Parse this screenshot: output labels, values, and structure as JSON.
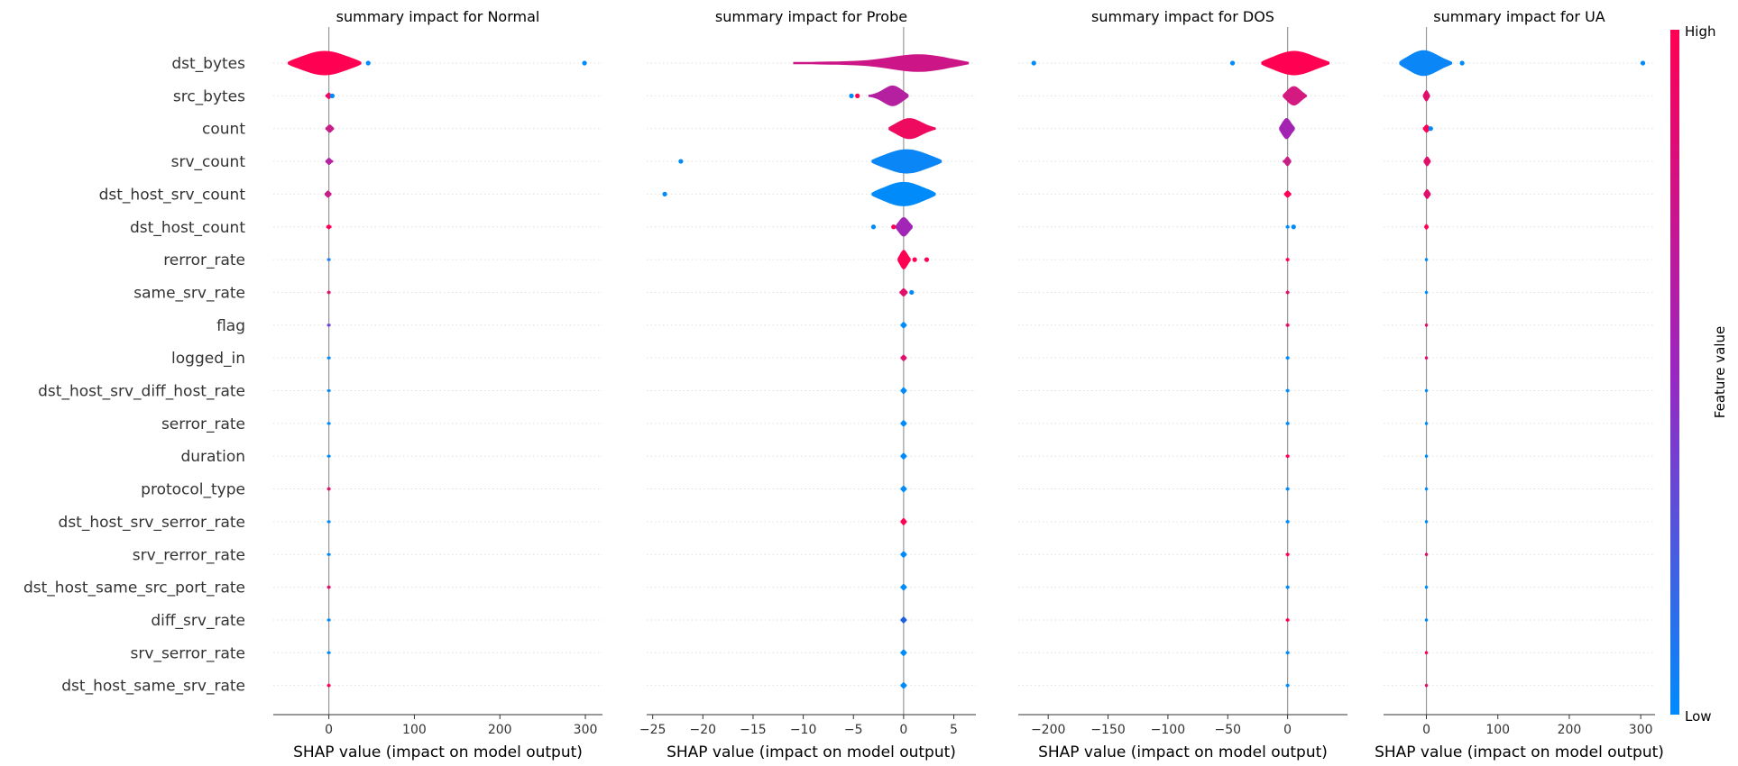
{
  "chart_data": {
    "type": "violin",
    "features": [
      "dst_bytes",
      "src_bytes",
      "count",
      "srv_count",
      "dst_host_srv_count",
      "dst_host_count",
      "rerror_rate",
      "same_srv_rate",
      "flag",
      "logged_in",
      "dst_host_srv_diff_host_rate",
      "serror_rate",
      "duration",
      "protocol_type",
      "dst_host_srv_serror_rate",
      "srv_rerror_rate",
      "dst_host_same_src_port_rate",
      "diff_srv_rate",
      "srv_serror_rate",
      "dst_host_same_srv_rate"
    ],
    "xlabel": "SHAP value (impact on model output)",
    "colorbar": {
      "label": "Feature value",
      "high": "High",
      "low": "Low",
      "high_color": "#ff0052",
      "mid_color": "#9a27c0",
      "low_color": "#008bfb"
    },
    "panels": [
      {
        "title": "summary impact for Normal",
        "xlim": [
          -65,
          320
        ],
        "xticks": [
          0,
          100,
          200,
          300
        ],
        "tick_labels": [
          "0",
          "100",
          "200",
          "300"
        ],
        "violins": [
          {
            "c": -5,
            "lo": -48,
            "hi": 38,
            "w": 0.75,
            "color": "#ff0052"
          },
          {
            "c": 0,
            "lo": -4,
            "hi": 4,
            "w": 0.2,
            "color": "#f20a5e"
          },
          {
            "c": 1,
            "lo": -4,
            "hi": 6,
            "w": 0.25,
            "color": "#c81e88"
          },
          {
            "c": 0,
            "lo": -4,
            "hi": 5,
            "w": 0.22,
            "color": "#b523a3"
          },
          {
            "c": -1,
            "lo": -5,
            "hi": 3,
            "w": 0.22,
            "color": "#c81e88"
          },
          {
            "c": 0,
            "lo": -3,
            "hi": 3,
            "w": 0.15,
            "color": "#ff0052"
          },
          {
            "c": 0,
            "lo": -2,
            "hi": 2,
            "w": 0.1,
            "color": "#1a82f5"
          },
          {
            "c": 0,
            "lo": -2,
            "hi": 2,
            "w": 0.12,
            "color": "#e0106a"
          },
          {
            "c": 0,
            "lo": -2,
            "hi": 2,
            "w": 0.1,
            "color": "#6a45d8"
          },
          {
            "c": 0,
            "lo": -2,
            "hi": 2,
            "w": 0.1,
            "color": "#008bfb"
          },
          {
            "c": 0,
            "lo": -2,
            "hi": 2,
            "w": 0.1,
            "color": "#008bfb"
          },
          {
            "c": 0,
            "lo": -2,
            "hi": 2,
            "w": 0.1,
            "color": "#008bfb"
          },
          {
            "c": 0,
            "lo": -2,
            "hi": 2,
            "w": 0.1,
            "color": "#008bfb"
          },
          {
            "c": 0,
            "lo": -2,
            "hi": 2,
            "w": 0.12,
            "color": "#e0106a"
          },
          {
            "c": 0,
            "lo": -2,
            "hi": 2,
            "w": 0.1,
            "color": "#008bfb"
          },
          {
            "c": 0,
            "lo": -2,
            "hi": 2,
            "w": 0.1,
            "color": "#008bfb"
          },
          {
            "c": 0,
            "lo": -2,
            "hi": 2,
            "w": 0.12,
            "color": "#e0106a"
          },
          {
            "c": 0,
            "lo": -2,
            "hi": 2,
            "w": 0.1,
            "color": "#008bfb"
          },
          {
            "c": 0,
            "lo": -2,
            "hi": 2,
            "w": 0.1,
            "color": "#008bfb"
          },
          {
            "c": 0,
            "lo": -2,
            "hi": 2,
            "w": 0.12,
            "color": "#ff0052"
          }
        ],
        "points": [
          {
            "f": 0,
            "x": 46,
            "color": "#008bfb"
          },
          {
            "f": 0,
            "x": 299,
            "color": "#008bfb"
          },
          {
            "f": 1,
            "x": 4,
            "color": "#008bfb"
          }
        ]
      },
      {
        "title": "summary impact for Probe",
        "xlim": [
          -25.6,
          7.2
        ],
        "xticks": [
          -25,
          -20,
          -15,
          -10,
          -5,
          0,
          5
        ],
        "tick_labels": [
          "−25",
          "−20",
          "−15",
          "−10",
          "−5",
          "0",
          "5"
        ],
        "violins": [
          {
            "c": 2,
            "lo": -11,
            "hi": 6.5,
            "w": 0.6,
            "color": "#cc1586"
          },
          {
            "c": -1,
            "lo": -3.5,
            "hi": 0.5,
            "w": 0.65,
            "color": "#b520a0"
          },
          {
            "c": 0.5,
            "lo": -1.5,
            "hi": 3.2,
            "w": 0.65,
            "color": "#ee0a5e"
          },
          {
            "c": 0.3,
            "lo": -3.2,
            "hi": 3.8,
            "w": 0.75,
            "color": "#0a86f7"
          },
          {
            "c": 0,
            "lo": -3.2,
            "hi": 3.2,
            "w": 0.75,
            "color": "#008bfb"
          },
          {
            "c": 0,
            "lo": -0.8,
            "hi": 0.9,
            "w": 0.6,
            "color": "#a226b5"
          },
          {
            "c": 0,
            "lo": -0.6,
            "hi": 0.7,
            "w": 0.6,
            "color": "#ff0052"
          },
          {
            "c": 0,
            "lo": -0.4,
            "hi": 0.4,
            "w": 0.25,
            "color": "#e0106a"
          },
          {
            "c": 0,
            "lo": -0.3,
            "hi": 0.3,
            "w": 0.2,
            "color": "#008bfb"
          },
          {
            "c": 0,
            "lo": -0.3,
            "hi": 0.3,
            "w": 0.2,
            "color": "#e0106a"
          },
          {
            "c": 0,
            "lo": -0.3,
            "hi": 0.3,
            "w": 0.2,
            "color": "#008bfb"
          },
          {
            "c": 0,
            "lo": -0.3,
            "hi": 0.3,
            "w": 0.2,
            "color": "#008bfb"
          },
          {
            "c": 0,
            "lo": -0.3,
            "hi": 0.3,
            "w": 0.2,
            "color": "#008bfb"
          },
          {
            "c": 0,
            "lo": -0.3,
            "hi": 0.3,
            "w": 0.2,
            "color": "#008bfb"
          },
          {
            "c": 0,
            "lo": -0.3,
            "hi": 0.3,
            "w": 0.22,
            "color": "#ff0052"
          },
          {
            "c": 0,
            "lo": -0.3,
            "hi": 0.3,
            "w": 0.2,
            "color": "#008bfb"
          },
          {
            "c": 0,
            "lo": -0.3,
            "hi": 0.3,
            "w": 0.2,
            "color": "#008bfb"
          },
          {
            "c": 0,
            "lo": -0.3,
            "hi": 0.3,
            "w": 0.2,
            "color": "#1a60e0"
          },
          {
            "c": 0,
            "lo": -0.3,
            "hi": 0.3,
            "w": 0.2,
            "color": "#008bfb"
          },
          {
            "c": 0,
            "lo": -0.3,
            "hi": 0.3,
            "w": 0.2,
            "color": "#008bfb"
          }
        ],
        "points": [
          {
            "f": 1,
            "x": -5.2,
            "color": "#008bfb"
          },
          {
            "f": 1,
            "x": -4.6,
            "color": "#ff0052"
          },
          {
            "f": 3,
            "x": -22.2,
            "color": "#008bfb"
          },
          {
            "f": 4,
            "x": -23.8,
            "color": "#008bfb"
          },
          {
            "f": 5,
            "x": -3.0,
            "color": "#008bfb"
          },
          {
            "f": 5,
            "x": -1.0,
            "color": "#ff0052"
          },
          {
            "f": 6,
            "x": 1.1,
            "color": "#ff0052"
          },
          {
            "f": 6,
            "x": 2.3,
            "color": "#ff0052"
          },
          {
            "f": 7,
            "x": 0.8,
            "color": "#008bfb"
          }
        ]
      },
      {
        "title": "summary impact for DOS",
        "xlim": [
          -225,
          50
        ],
        "xticks": [
          -200,
          -150,
          -100,
          -50,
          0
        ],
        "tick_labels": [
          "−200",
          "−150",
          "−100",
          "−50",
          "0"
        ],
        "violins": [
          {
            "c": 5,
            "lo": -22,
            "hi": 35,
            "w": 0.75,
            "color": "#ff0052"
          },
          {
            "c": 5,
            "lo": -4,
            "hi": 16,
            "w": 0.6,
            "color": "#d41a80"
          },
          {
            "c": -1,
            "lo": -7,
            "hi": 6,
            "w": 0.65,
            "color": "#a322b2"
          },
          {
            "c": 0,
            "lo": -4,
            "hi": 3,
            "w": 0.3,
            "color": "#c81e88"
          },
          {
            "c": 0,
            "lo": -3,
            "hi": 3,
            "w": 0.22,
            "color": "#ff0052"
          },
          {
            "c": 0,
            "lo": -1.5,
            "hi": 1.5,
            "w": 0.12,
            "color": "#008bfb"
          },
          {
            "c": 0,
            "lo": -1.5,
            "hi": 1.5,
            "w": 0.12,
            "color": "#ff0052"
          },
          {
            "c": 0,
            "lo": -1.5,
            "hi": 1.5,
            "w": 0.12,
            "color": "#e0106a"
          },
          {
            "c": 0,
            "lo": -1.5,
            "hi": 1.5,
            "w": 0.12,
            "color": "#e0106a"
          },
          {
            "c": 0,
            "lo": -1.5,
            "hi": 1.5,
            "w": 0.12,
            "color": "#008bfb"
          },
          {
            "c": 0,
            "lo": -1.5,
            "hi": 1.5,
            "w": 0.12,
            "color": "#008bfb"
          },
          {
            "c": 0,
            "lo": -1.5,
            "hi": 1.5,
            "w": 0.12,
            "color": "#008bfb"
          },
          {
            "c": 0,
            "lo": -1.5,
            "hi": 1.5,
            "w": 0.12,
            "color": "#ff0052"
          },
          {
            "c": 0,
            "lo": -1.5,
            "hi": 1.5,
            "w": 0.12,
            "color": "#008bfb"
          },
          {
            "c": 0,
            "lo": -1.5,
            "hi": 1.5,
            "w": 0.12,
            "color": "#008bfb"
          },
          {
            "c": 0,
            "lo": -1.5,
            "hi": 1.5,
            "w": 0.12,
            "color": "#ff0052"
          },
          {
            "c": 0,
            "lo": -1.5,
            "hi": 1.5,
            "w": 0.12,
            "color": "#008bfb"
          },
          {
            "c": 0,
            "lo": -1.5,
            "hi": 1.5,
            "w": 0.12,
            "color": "#ff0052"
          },
          {
            "c": 0,
            "lo": -1.5,
            "hi": 1.5,
            "w": 0.12,
            "color": "#008bfb"
          },
          {
            "c": 0,
            "lo": -1.5,
            "hi": 1.5,
            "w": 0.12,
            "color": "#008bfb"
          }
        ],
        "points": [
          {
            "f": 0,
            "x": -212,
            "color": "#008bfb"
          },
          {
            "f": 0,
            "x": -46,
            "color": "#008bfb"
          },
          {
            "f": 5,
            "x": 5,
            "color": "#008bfb"
          }
        ]
      },
      {
        "title": "summary impact for UA",
        "xlim": [
          -60,
          320
        ],
        "xticks": [
          0,
          100,
          200,
          300
        ],
        "tick_labels": [
          "0",
          "100",
          "200",
          "300"
        ],
        "violins": [
          {
            "c": -5,
            "lo": -38,
            "hi": 36,
            "w": 0.8,
            "color": "#0a86f7"
          },
          {
            "c": 0,
            "lo": -5,
            "hi": 5,
            "w": 0.35,
            "color": "#e0106a"
          },
          {
            "c": 0,
            "lo": -5,
            "hi": 7,
            "w": 0.25,
            "color": "#ff0052"
          },
          {
            "c": 1,
            "lo": -4,
            "hi": 6,
            "w": 0.3,
            "color": "#e0106a"
          },
          {
            "c": 1,
            "lo": -4,
            "hi": 6,
            "w": 0.3,
            "color": "#e0106a"
          },
          {
            "c": 0,
            "lo": -3,
            "hi": 3,
            "w": 0.18,
            "color": "#ff0052"
          },
          {
            "c": 0,
            "lo": -2,
            "hi": 2,
            "w": 0.12,
            "color": "#008bfb"
          },
          {
            "c": 0,
            "lo": -2,
            "hi": 2,
            "w": 0.12,
            "color": "#008bfb"
          },
          {
            "c": 0,
            "lo": -2,
            "hi": 2,
            "w": 0.12,
            "color": "#e0106a"
          },
          {
            "c": 0,
            "lo": -2,
            "hi": 2,
            "w": 0.12,
            "color": "#e0106a"
          },
          {
            "c": 0,
            "lo": -2,
            "hi": 2,
            "w": 0.12,
            "color": "#008bfb"
          },
          {
            "c": 0,
            "lo": -2,
            "hi": 2,
            "w": 0.12,
            "color": "#008bfb"
          },
          {
            "c": 0,
            "lo": -2,
            "hi": 2,
            "w": 0.12,
            "color": "#008bfb"
          },
          {
            "c": 0,
            "lo": -2,
            "hi": 2,
            "w": 0.12,
            "color": "#008bfb"
          },
          {
            "c": 0,
            "lo": -2,
            "hi": 2,
            "w": 0.12,
            "color": "#008bfb"
          },
          {
            "c": 0,
            "lo": -2,
            "hi": 2,
            "w": 0.12,
            "color": "#e0106a"
          },
          {
            "c": 0,
            "lo": -2,
            "hi": 2,
            "w": 0.12,
            "color": "#008bfb"
          },
          {
            "c": 0,
            "lo": -2,
            "hi": 2,
            "w": 0.12,
            "color": "#008bfb"
          },
          {
            "c": 0,
            "lo": -2,
            "hi": 2,
            "w": 0.12,
            "color": "#ff0052"
          },
          {
            "c": 0,
            "lo": -2,
            "hi": 2,
            "w": 0.12,
            "color": "#e0106a"
          }
        ],
        "points": [
          {
            "f": 0,
            "x": 50,
            "color": "#008bfb"
          },
          {
            "f": 0,
            "x": 303,
            "color": "#008bfb"
          },
          {
            "f": 2,
            "x": 6,
            "color": "#008bfb"
          }
        ]
      }
    ]
  }
}
